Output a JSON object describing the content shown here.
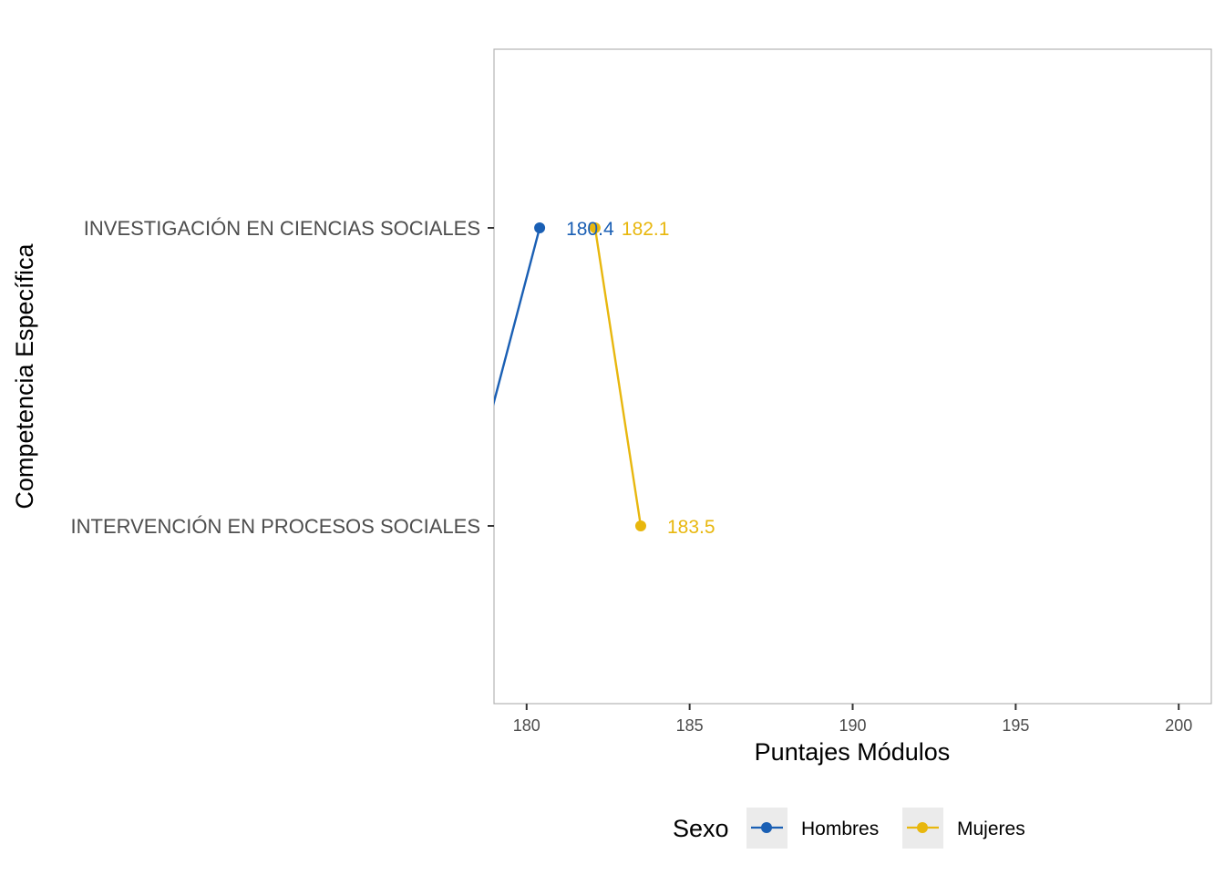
{
  "chart_data": {
    "type": "line",
    "xlabel": "Puntajes Módulos",
    "ylabel": "Competencia Específica",
    "categories": [
      "INVESTIGACIÓN EN CIENCIAS SOCIALES",
      "INTERVENCIÓN EN PROCESOS SOCIALES"
    ],
    "x_ticks": [
      "180",
      "185",
      "190",
      "195",
      "200"
    ],
    "xlim": [
      179,
      201
    ],
    "grid": false,
    "legend": {
      "title": "Sexo",
      "position": "bottom"
    },
    "series": [
      {
        "name": "Hombres",
        "color": "#1a5fb4",
        "values": [
          180.4,
          178.0
        ],
        "labels": [
          "180.4",
          ""
        ]
      },
      {
        "name": "Mujeres",
        "color": "#e8b70e",
        "values": [
          182.1,
          183.5
        ],
        "labels": [
          "182.1",
          "183.5"
        ]
      }
    ]
  }
}
